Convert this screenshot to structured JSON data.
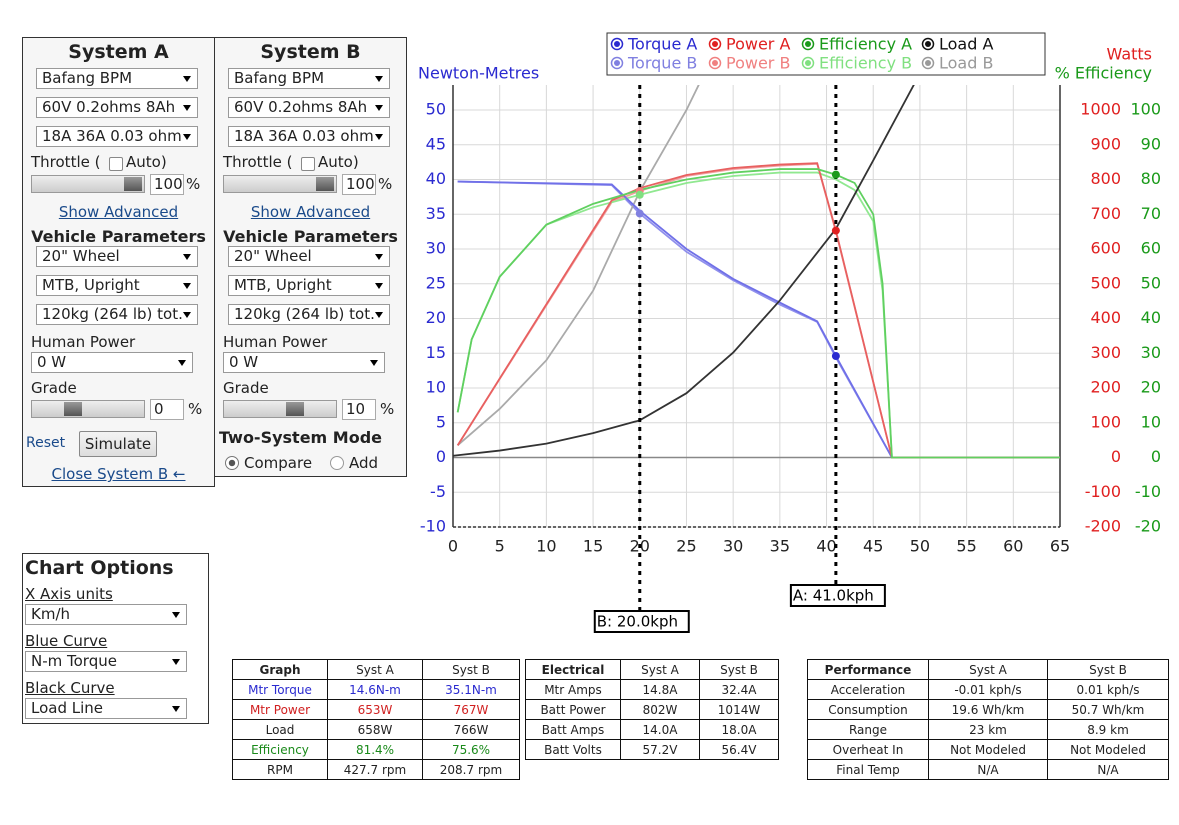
{
  "systems": [
    {
      "title": "System A",
      "motor": "Bafang BPM",
      "battery": "60V 0.2ohms 8Ah",
      "controller": "18A 36A 0.03 ohm",
      "throttle_label": "Throttle (",
      "auto_label": "Auto)",
      "throttle_value": "100",
      "throttle_unit": "%",
      "show_advanced": "Show Advanced",
      "vehicle_heading": "Vehicle Parameters",
      "wheel": "20\"  Wheel",
      "frame": "MTB, Upright",
      "weight": "120kg (264 lb) tot.",
      "human_power_label": "Human Power",
      "human_power": "0 W",
      "grade_label": "Grade",
      "grade_value": "0",
      "grade_unit": "%",
      "reset": "Reset",
      "simulate": "Simulate",
      "close": "Close System B ←"
    },
    {
      "title": "System B",
      "motor": "Bafang BPM",
      "battery": "60V 0.2ohms 8Ah",
      "controller": "18A 36A 0.03 ohm",
      "throttle_label": "Throttle (",
      "auto_label": "Auto)",
      "throttle_value": "100",
      "throttle_unit": "%",
      "show_advanced": "Show Advanced",
      "vehicle_heading": "Vehicle Parameters",
      "wheel": "20\"  Wheel",
      "frame": "MTB, Upright",
      "weight": "120kg (264 lb) tot.",
      "human_power_label": "Human Power",
      "human_power": "0 W",
      "grade_label": "Grade",
      "grade_value": "10",
      "grade_unit": "%",
      "mode_heading": "Two-System Mode",
      "compare": "Compare",
      "add": "Add"
    }
  ],
  "chart_options": {
    "title": "Chart Options",
    "x_units_label": "X Axis units",
    "x_units": "Km/h",
    "blue_label": "Blue Curve",
    "blue": "N-m Torque",
    "black_label": "Black Curve",
    "black": "Load Line"
  },
  "chart_data": {
    "type": "line",
    "ylabel": "Newton-Metres",
    "y2label": "Watts",
    "y3label": "% Efficiency",
    "xlim": [
      0,
      65
    ],
    "xticks": [
      0,
      5,
      10,
      15,
      20,
      25,
      30,
      35,
      40,
      45,
      50,
      55,
      60,
      65
    ],
    "ylim": [
      -10,
      50
    ],
    "yticks": [
      -10,
      -5,
      0,
      5,
      10,
      15,
      20,
      25,
      30,
      35,
      40,
      45,
      50
    ],
    "y2lim": [
      -200,
      1000
    ],
    "y2ticks": [
      -200,
      -100,
      0,
      100,
      200,
      300,
      400,
      500,
      600,
      700,
      800,
      900,
      1000
    ],
    "y3lim": [
      -20,
      100
    ],
    "y3ticks": [
      -20,
      -10,
      0,
      10,
      20,
      30,
      40,
      50,
      60,
      70,
      80,
      90,
      100
    ],
    "grid": true,
    "series": [
      {
        "name": "Torque A",
        "color": "#2a2ad0",
        "line_color": "#7070e8",
        "axis": "y",
        "x": [
          0.5,
          17,
          20,
          25,
          30,
          35,
          39,
          41,
          47,
          65
        ],
        "values": [
          39.7,
          39.3,
          35.5,
          30,
          25.7,
          22.3,
          19.6,
          14.6,
          0,
          0
        ]
      },
      {
        "name": "Power A",
        "color": "#e02020",
        "line_color": "#e86060",
        "axis": "y2",
        "x": [
          0.5,
          17,
          20,
          25,
          30,
          35,
          39,
          41,
          47,
          65
        ],
        "values": [
          35,
          740,
          775,
          813,
          833,
          843,
          847,
          653,
          0,
          0
        ]
      },
      {
        "name": "Efficiency A",
        "color": "#1a9a1a",
        "line_color": "#60d060",
        "axis": "y3",
        "x": [
          0.5,
          2,
          5,
          10,
          15,
          20,
          25,
          30,
          35,
          39,
          41,
          43,
          45,
          46,
          47,
          65
        ],
        "values": [
          13,
          34,
          52,
          67,
          73,
          77,
          80,
          82,
          83,
          83,
          81.4,
          79,
          70,
          50,
          0,
          0
        ]
      },
      {
        "name": "Load A",
        "color": "#111111",
        "line_color": "#333333",
        "axis": "y2",
        "x": [
          0,
          5,
          10,
          15,
          20,
          25,
          30,
          35,
          41,
          45,
          49.5
        ],
        "values": [
          5,
          20,
          40,
          70,
          107,
          185,
          302,
          452,
          658,
          855,
          1080
        ]
      },
      {
        "name": "Torque B",
        "color": "#8080e0",
        "line_color": "#9090ec",
        "axis": "y",
        "x": [
          0.5,
          17,
          20,
          25,
          30,
          35,
          39,
          41,
          47,
          65
        ],
        "values": [
          39.7,
          39.2,
          35.1,
          29.6,
          25.5,
          22,
          19.5,
          14.4,
          0,
          0
        ]
      },
      {
        "name": "Power B",
        "color": "#f08080",
        "line_color": "#f0a0a0",
        "axis": "y2",
        "x": [
          0.5,
          17,
          20,
          25,
          30,
          35,
          39,
          41,
          47,
          65
        ],
        "values": [
          35,
          735,
          767,
          810,
          830,
          840,
          845,
          650,
          0,
          0
        ]
      },
      {
        "name": "Efficiency B",
        "color": "#80e080",
        "line_color": "#90e890",
        "axis": "y3",
        "x": [
          0.5,
          2,
          5,
          10,
          15,
          20,
          25,
          30,
          35,
          39,
          41,
          43,
          45,
          46,
          47,
          65
        ],
        "values": [
          13,
          34,
          52,
          67,
          72,
          75.6,
          79,
          81,
          82,
          82,
          80,
          77,
          68,
          48,
          0,
          0
        ]
      },
      {
        "name": "Load B",
        "color": "#999999",
        "line_color": "#aaaaaa",
        "axis": "y2",
        "x": [
          0.5,
          5,
          10,
          15,
          20,
          25,
          27
        ],
        "values": [
          35,
          140,
          280,
          480,
          766,
          1000,
          1110
        ]
      }
    ],
    "markers": [
      {
        "label": "B: 20.0kph",
        "x": 20,
        "series": [
          4,
          5,
          6
        ]
      },
      {
        "label": "A: 41.0kph",
        "x": 41,
        "series": [
          0,
          1,
          2
        ]
      }
    ]
  },
  "tables": [
    {
      "headers": [
        "Graph",
        "Syst A",
        "Syst B"
      ],
      "rows": [
        [
          "Mtr Torque",
          "14.6N-m",
          "35.1N-m"
        ],
        [
          "Mtr Power",
          "653W",
          "767W"
        ],
        [
          "Load",
          "658W",
          "766W"
        ],
        [
          "Efficiency",
          "81.4%",
          "75.6%"
        ],
        [
          "RPM",
          "427.7 rpm",
          "208.7 rpm"
        ]
      ]
    },
    {
      "headers": [
        "Electrical",
        "Syst A",
        "Syst B"
      ],
      "rows": [
        [
          "Mtr Amps",
          "14.8A",
          "32.4A"
        ],
        [
          "Batt Power",
          "802W",
          "1014W"
        ],
        [
          "Batt Amps",
          "14.0A",
          "18.0A"
        ],
        [
          "Batt Volts",
          "57.2V",
          "56.4V"
        ]
      ]
    },
    {
      "headers": [
        "Performance",
        "Syst A",
        "Syst B"
      ],
      "rows": [
        [
          "Acceleration",
          "-0.01 kph/s",
          "0.01 kph/s"
        ],
        [
          "Consumption",
          "19.6 Wh/km",
          "50.7 Wh/km"
        ],
        [
          "Range",
          "23 km",
          "8.9 km"
        ],
        [
          "Overheat In",
          "Not Modeled",
          "Not Modeled"
        ],
        [
          "Final Temp",
          "N/A",
          "N/A"
        ]
      ]
    }
  ]
}
